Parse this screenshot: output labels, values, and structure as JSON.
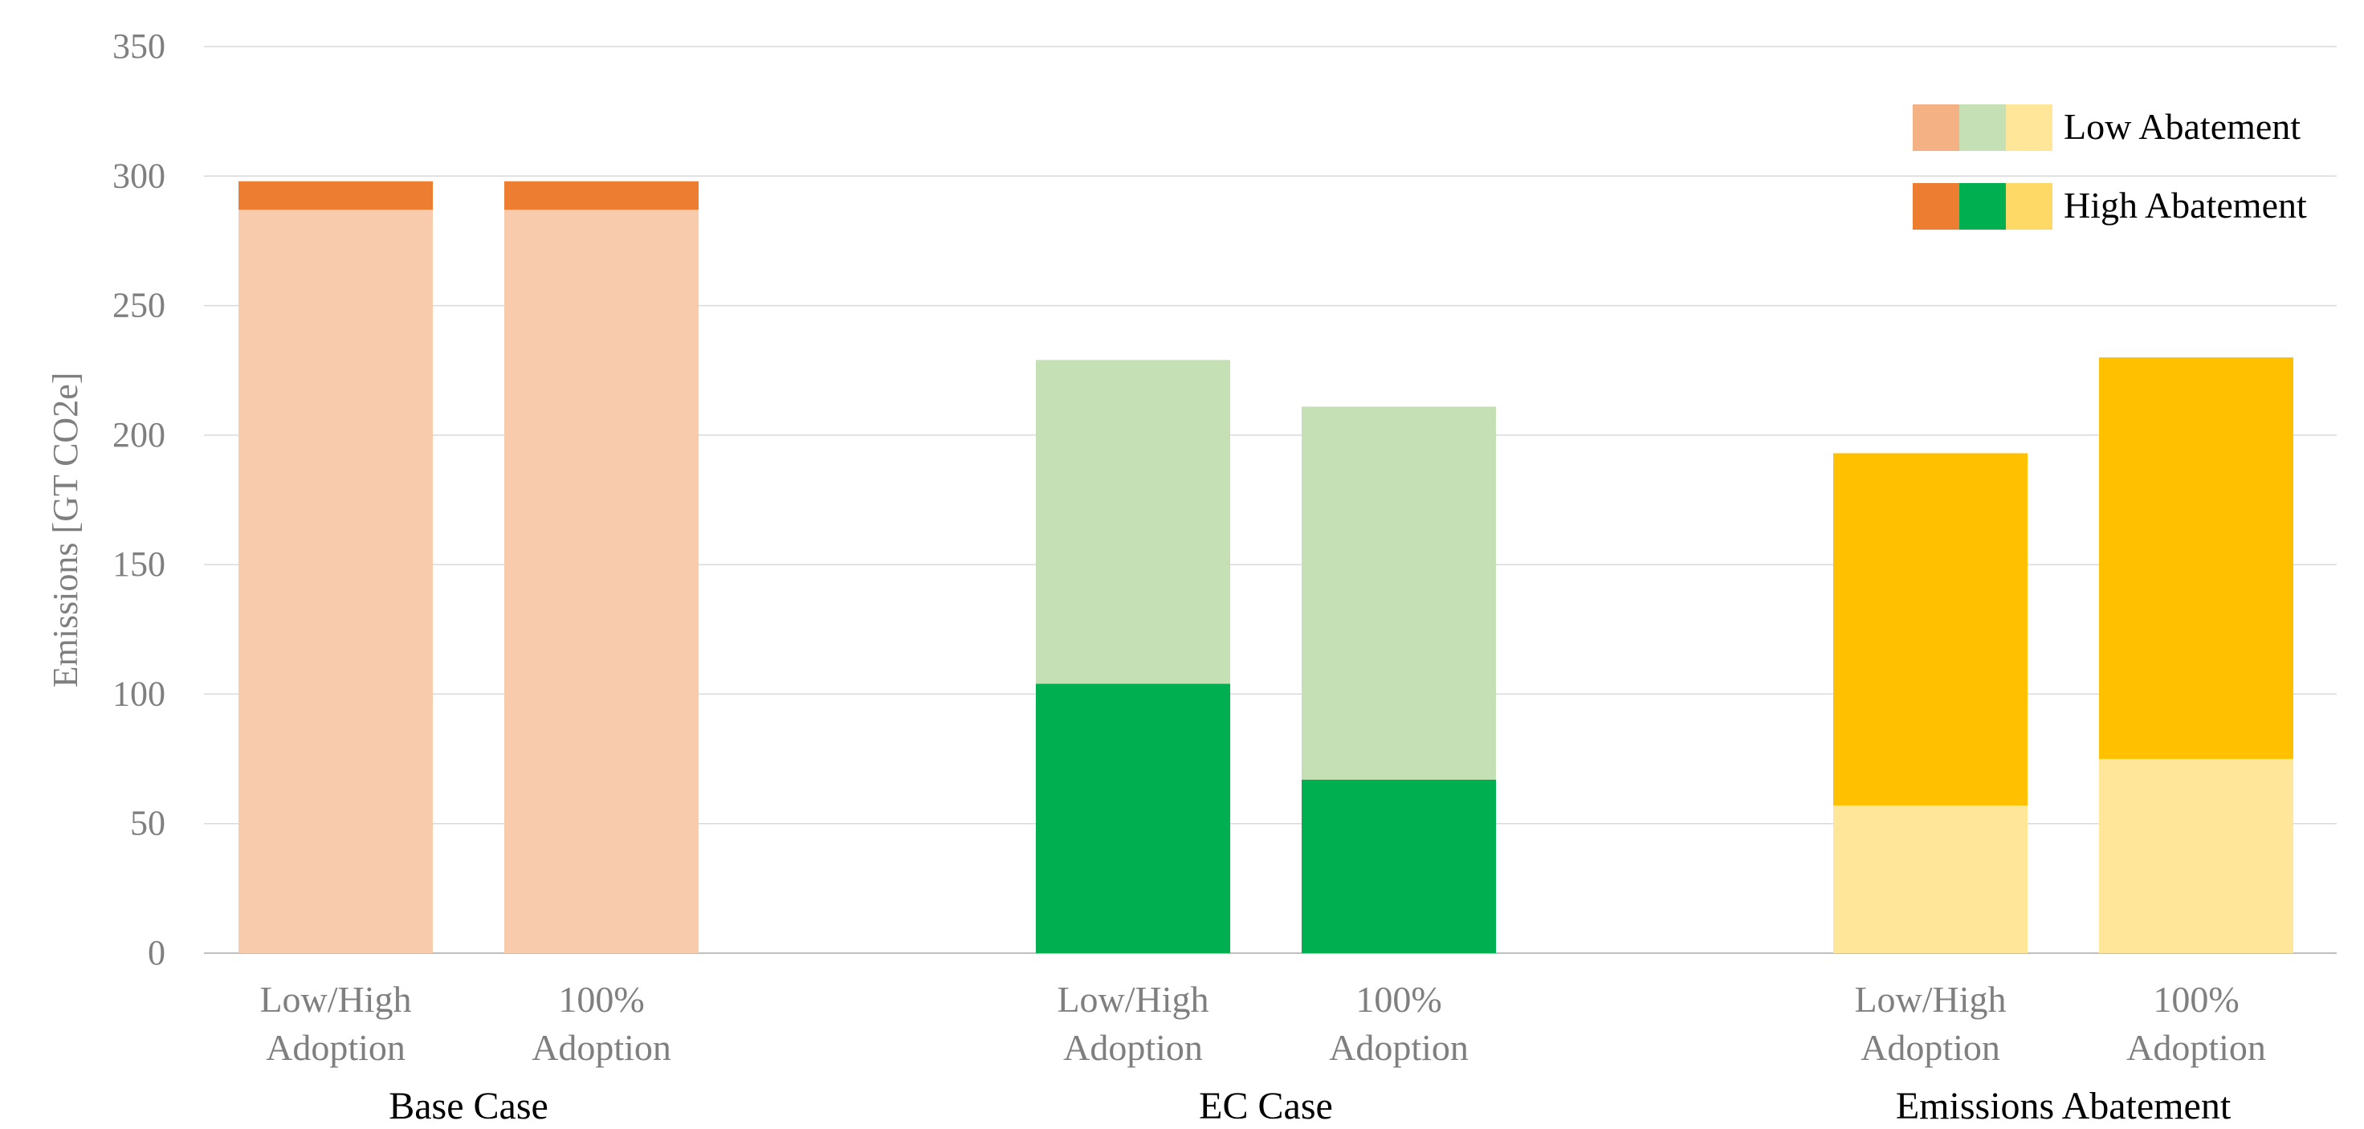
{
  "chart_data": {
    "type": "bar",
    "stacked": true,
    "ylabel": "Emissions [GT CO2e]",
    "ylim": [
      0,
      350
    ],
    "yticks": [
      0,
      50,
      100,
      150,
      200,
      250,
      300,
      350
    ],
    "grid": true,
    "legend_position": "top-right",
    "legend": [
      {
        "label": "Low Abatement",
        "colors": [
          "#F4B183",
          "#C5E0B4",
          "#FFE699"
        ]
      },
      {
        "label": "High Abatement",
        "colors": [
          "#ED7D31",
          "#00B050",
          "#FFD966"
        ]
      }
    ],
    "groups": [
      {
        "name": "Base Case",
        "bars": [
          {
            "category": [
              "Low/High",
              "Adoption"
            ],
            "segments": [
              {
                "series": "High Abatement",
                "value": 287,
                "color": "#F8CBAD"
              },
              {
                "series": "Low Abatement",
                "value": 11,
                "color": "#ED7D31"
              }
            ]
          },
          {
            "category": [
              "100%",
              "Adoption"
            ],
            "segments": [
              {
                "series": "High Abatement",
                "value": 287,
                "color": "#F8CBAD"
              },
              {
                "series": "Low Abatement",
                "value": 11,
                "color": "#ED7D31"
              }
            ]
          }
        ]
      },
      {
        "name": "EC Case",
        "bars": [
          {
            "category": [
              "Low/High",
              "Adoption"
            ],
            "segments": [
              {
                "series": "High Abatement",
                "value": 104,
                "color": "#00B050"
              },
              {
                "series": "Low Abatement",
                "value": 125,
                "color": "#C5E0B4"
              }
            ]
          },
          {
            "category": [
              "100%",
              "Adoption"
            ],
            "segments": [
              {
                "series": "High Abatement",
                "value": 67,
                "color": "#00B050"
              },
              {
                "series": "Low Abatement",
                "value": 144,
                "color": "#C5E0B4"
              }
            ]
          }
        ]
      },
      {
        "name": "Emissions Abatement",
        "bars": [
          {
            "category": [
              "Low/High",
              "Adoption"
            ],
            "segments": [
              {
                "series": "Low Abatement",
                "value": 57,
                "color": "#FFE699"
              },
              {
                "series": "High Abatement",
                "value": 136,
                "color": "#FFC000"
              }
            ]
          },
          {
            "category": [
              "100%",
              "Adoption"
            ],
            "segments": [
              {
                "series": "Low Abatement",
                "value": 75,
                "color": "#FFE699"
              },
              {
                "series": "High Abatement",
                "value": 155,
                "color": "#FFC000"
              }
            ]
          }
        ]
      }
    ]
  }
}
